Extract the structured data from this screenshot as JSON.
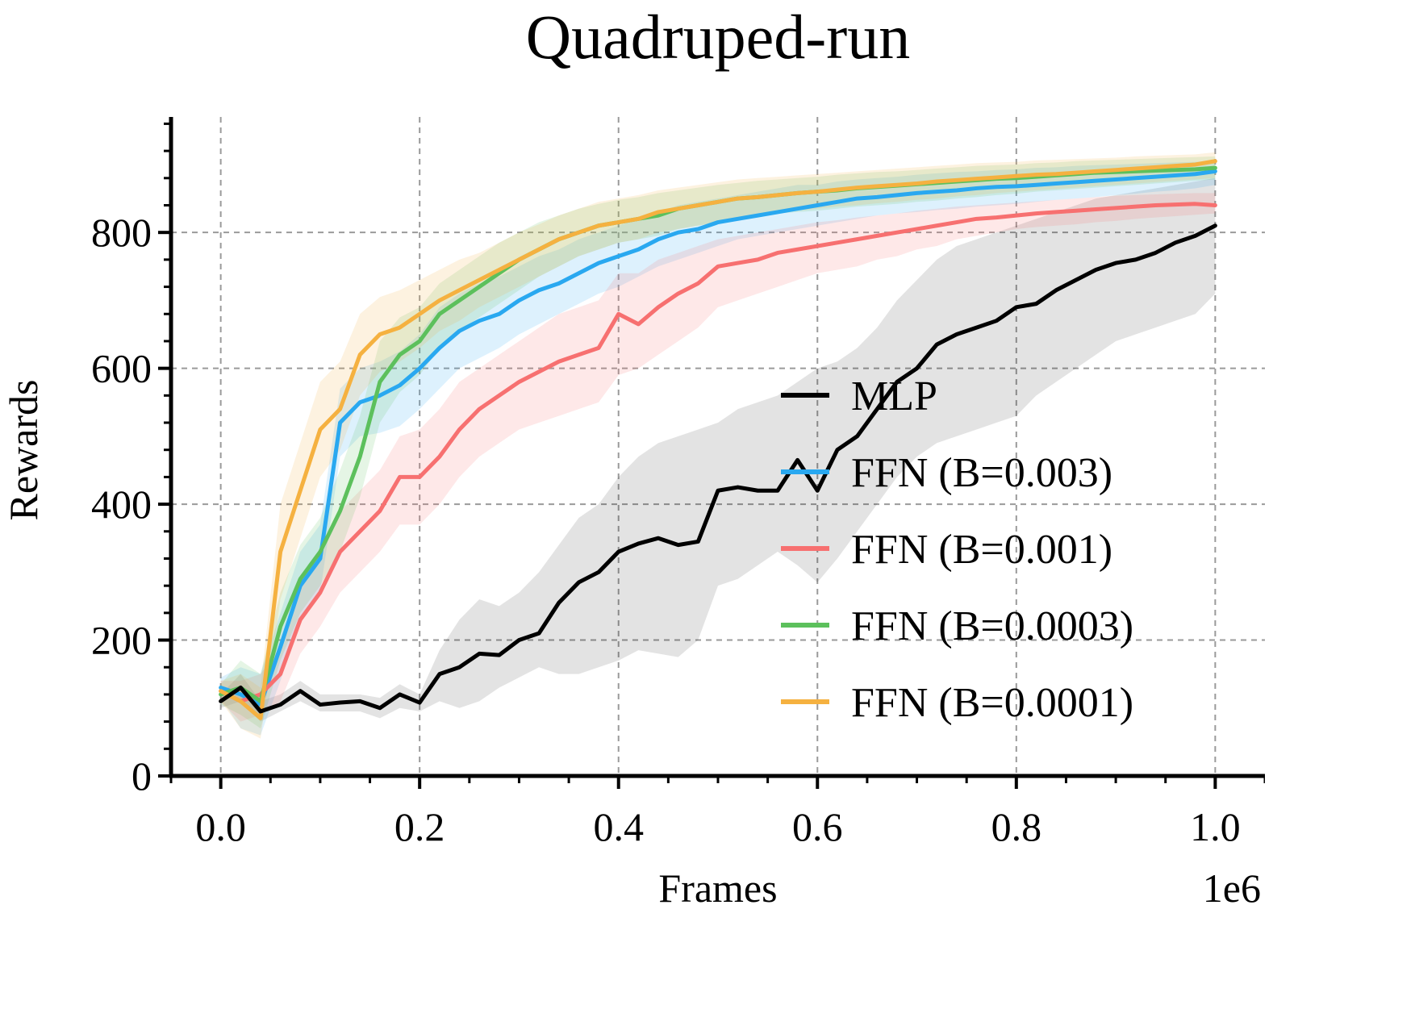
{
  "chart_data": {
    "type": "line",
    "title": "Quadruped-run",
    "xlabel": "Frames",
    "ylabel": "Rewards",
    "x_scale_label": "1e6",
    "xlim": [
      -0.05,
      1.05
    ],
    "ylim": [
      0,
      970
    ],
    "xticks": [
      0.0,
      0.2,
      0.4,
      0.6,
      0.8,
      1.0
    ],
    "xtick_labels": [
      "0.0",
      "0.2",
      "0.4",
      "0.6",
      "0.8",
      "1.0"
    ],
    "yticks": [
      0,
      200,
      400,
      600,
      800
    ],
    "ytick_labels": [
      "0",
      "200",
      "400",
      "600",
      "800"
    ],
    "grid": true,
    "legend_position": "center-right",
    "series": [
      {
        "name": "MLP",
        "color": "#000000",
        "x": [
          0.0,
          0.02,
          0.04,
          0.06,
          0.08,
          0.1,
          0.12,
          0.14,
          0.16,
          0.18,
          0.2,
          0.22,
          0.24,
          0.26,
          0.28,
          0.3,
          0.32,
          0.34,
          0.36,
          0.38,
          0.4,
          0.42,
          0.44,
          0.46,
          0.48,
          0.5,
          0.52,
          0.54,
          0.56,
          0.58,
          0.6,
          0.62,
          0.64,
          0.66,
          0.68,
          0.7,
          0.72,
          0.74,
          0.76,
          0.78,
          0.8,
          0.82,
          0.84,
          0.86,
          0.88,
          0.9,
          0.92,
          0.94,
          0.96,
          0.98,
          1.0
        ],
        "values": [
          110,
          130,
          95,
          105,
          125,
          105,
          108,
          110,
          100,
          120,
          108,
          150,
          160,
          180,
          178,
          200,
          210,
          255,
          285,
          300,
          330,
          342,
          350,
          340,
          345,
          420,
          425,
          420,
          420,
          465,
          420,
          480,
          500,
          540,
          580,
          600,
          635,
          650,
          660,
          670,
          690,
          695,
          715,
          730,
          745,
          755,
          760,
          770,
          785,
          795,
          810
        ],
        "band_low": [
          100,
          110,
          80,
          95,
          110,
          95,
          95,
          95,
          85,
          100,
          95,
          110,
          100,
          110,
          130,
          145,
          160,
          150,
          150,
          160,
          170,
          185,
          180,
          175,
          200,
          280,
          290,
          310,
          330,
          310,
          285,
          320,
          360,
          400,
          440,
          470,
          490,
          500,
          510,
          520,
          530,
          560,
          580,
          600,
          620,
          640,
          650,
          660,
          670,
          680,
          710
        ],
        "band_high": [
          120,
          150,
          110,
          120,
          140,
          120,
          120,
          120,
          115,
          135,
          120,
          185,
          230,
          260,
          250,
          270,
          300,
          340,
          380,
          400,
          440,
          470,
          490,
          500,
          510,
          520,
          540,
          550,
          560,
          580,
          600,
          610,
          630,
          660,
          700,
          730,
          760,
          780,
          790,
          800,
          810,
          820,
          830,
          840,
          850,
          855,
          860,
          865,
          870,
          875,
          880
        ]
      },
      {
        "name": "FFN (B=0.003)",
        "color": "#29a8f0",
        "x": [
          0.0,
          0.02,
          0.04,
          0.06,
          0.08,
          0.1,
          0.12,
          0.14,
          0.16,
          0.18,
          0.2,
          0.22,
          0.24,
          0.26,
          0.28,
          0.3,
          0.32,
          0.34,
          0.36,
          0.38,
          0.4,
          0.42,
          0.44,
          0.46,
          0.48,
          0.5,
          0.52,
          0.54,
          0.56,
          0.58,
          0.6,
          0.62,
          0.64,
          0.66,
          0.68,
          0.7,
          0.72,
          0.74,
          0.76,
          0.78,
          0.8,
          0.82,
          0.84,
          0.86,
          0.88,
          0.9,
          0.92,
          0.94,
          0.96,
          0.98,
          1.0
        ],
        "values": [
          130,
          120,
          105,
          190,
          280,
          320,
          520,
          550,
          560,
          575,
          600,
          630,
          655,
          670,
          680,
          700,
          715,
          725,
          740,
          755,
          765,
          775,
          790,
          800,
          805,
          815,
          820,
          825,
          830,
          835,
          840,
          845,
          850,
          852,
          855,
          858,
          860,
          862,
          865,
          867,
          868,
          870,
          872,
          874,
          876,
          878,
          880,
          882,
          884,
          886,
          890
        ],
        "band_low": [
          115,
          70,
          60,
          140,
          230,
          270,
          470,
          500,
          505,
          515,
          540,
          570,
          600,
          615,
          630,
          650,
          665,
          680,
          695,
          710,
          720,
          735,
          750,
          760,
          770,
          780,
          790,
          795,
          800,
          805,
          810,
          815,
          820,
          825,
          828,
          830,
          833,
          835,
          838,
          840,
          842,
          845,
          848,
          850,
          852,
          855,
          857,
          860,
          862,
          865,
          870
        ],
        "band_high": [
          145,
          160,
          150,
          240,
          330,
          370,
          570,
          600,
          610,
          625,
          650,
          690,
          710,
          725,
          735,
          750,
          765,
          775,
          790,
          800,
          810,
          820,
          830,
          840,
          845,
          850,
          855,
          860,
          865,
          870,
          870,
          875,
          878,
          880,
          882,
          885,
          887,
          889,
          890,
          892,
          893,
          895,
          896,
          898,
          899,
          900,
          901,
          902,
          903,
          904,
          905
        ]
      },
      {
        "name": "FFN (B=0.001)",
        "color": "#f77070",
        "x": [
          0.0,
          0.02,
          0.04,
          0.06,
          0.08,
          0.1,
          0.12,
          0.14,
          0.16,
          0.18,
          0.2,
          0.22,
          0.24,
          0.26,
          0.28,
          0.3,
          0.32,
          0.34,
          0.36,
          0.38,
          0.4,
          0.42,
          0.44,
          0.46,
          0.48,
          0.5,
          0.52,
          0.54,
          0.56,
          0.58,
          0.6,
          0.62,
          0.64,
          0.66,
          0.68,
          0.7,
          0.72,
          0.74,
          0.76,
          0.78,
          0.8,
          0.82,
          0.84,
          0.86,
          0.88,
          0.9,
          0.92,
          0.94,
          0.96,
          0.98,
          1.0
        ],
        "values": [
          125,
          110,
          120,
          150,
          230,
          270,
          330,
          360,
          390,
          440,
          440,
          470,
          510,
          540,
          560,
          580,
          595,
          610,
          620,
          630,
          680,
          665,
          690,
          710,
          725,
          750,
          755,
          760,
          770,
          775,
          780,
          785,
          790,
          795,
          800,
          805,
          810,
          815,
          820,
          822,
          825,
          828,
          830,
          832,
          834,
          836,
          838,
          840,
          841,
          842,
          840
        ],
        "band_low": [
          110,
          80,
          90,
          110,
          180,
          220,
          270,
          300,
          330,
          370,
          370,
          400,
          440,
          470,
          490,
          510,
          520,
          530,
          540,
          550,
          590,
          600,
          620,
          640,
          660,
          690,
          700,
          710,
          720,
          730,
          740,
          745,
          750,
          760,
          765,
          775,
          780,
          790,
          795,
          800,
          805,
          808,
          810,
          812,
          815,
          817,
          820,
          822,
          824,
          826,
          828
        ],
        "band_high": [
          140,
          140,
          150,
          190,
          280,
          320,
          390,
          420,
          450,
          500,
          510,
          540,
          580,
          600,
          620,
          640,
          660,
          680,
          690,
          700,
          740,
          740,
          760,
          770,
          780,
          790,
          795,
          800,
          805,
          810,
          815,
          818,
          822,
          825,
          828,
          832,
          835,
          838,
          840,
          842,
          844,
          846,
          848,
          850,
          852,
          854,
          855,
          856,
          857,
          858,
          858
        ]
      },
      {
        "name": "FFN (B=0.0003)",
        "color": "#5cc05c",
        "x": [
          0.0,
          0.02,
          0.04,
          0.06,
          0.08,
          0.1,
          0.12,
          0.14,
          0.16,
          0.18,
          0.2,
          0.22,
          0.24,
          0.26,
          0.28,
          0.3,
          0.32,
          0.34,
          0.36,
          0.38,
          0.4,
          0.42,
          0.44,
          0.46,
          0.48,
          0.5,
          0.52,
          0.54,
          0.56,
          0.58,
          0.6,
          0.62,
          0.64,
          0.66,
          0.68,
          0.7,
          0.72,
          0.74,
          0.76,
          0.78,
          0.8,
          0.82,
          0.84,
          0.86,
          0.88,
          0.9,
          0.92,
          0.94,
          0.96,
          0.98,
          1.0
        ],
        "values": [
          120,
          130,
          110,
          220,
          290,
          330,
          390,
          470,
          580,
          620,
          640,
          680,
          700,
          720,
          740,
          760,
          775,
          790,
          800,
          810,
          815,
          820,
          825,
          835,
          840,
          845,
          850,
          852,
          855,
          858,
          860,
          862,
          865,
          867,
          869,
          871,
          873,
          875,
          877,
          879,
          880,
          882,
          884,
          886,
          888,
          889,
          890,
          891,
          892,
          893,
          895
        ],
        "band_low": [
          105,
          90,
          70,
          170,
          240,
          280,
          330,
          410,
          520,
          565,
          590,
          630,
          655,
          675,
          695,
          715,
          735,
          750,
          765,
          775,
          785,
          790,
          795,
          805,
          810,
          815,
          820,
          825,
          828,
          830,
          832,
          835,
          838,
          840,
          842,
          845,
          847,
          850,
          852,
          855,
          857,
          860,
          862,
          864,
          866,
          868,
          870,
          872,
          874,
          876,
          878
        ],
        "band_high": [
          135,
          170,
          150,
          270,
          340,
          380,
          450,
          530,
          640,
          675,
          690,
          725,
          745,
          765,
          785,
          800,
          815,
          825,
          835,
          842,
          848,
          852,
          858,
          862,
          866,
          870,
          873,
          876,
          878,
          880,
          882,
          885,
          887,
          889,
          890,
          892,
          894,
          896,
          898,
          899,
          900,
          902,
          903,
          905,
          906,
          907,
          908,
          909,
          910,
          911,
          912
        ]
      },
      {
        "name": "FFN (B=0.0001)",
        "color": "#f5b140",
        "x": [
          0.0,
          0.02,
          0.04,
          0.06,
          0.08,
          0.1,
          0.12,
          0.14,
          0.16,
          0.18,
          0.2,
          0.22,
          0.24,
          0.26,
          0.28,
          0.3,
          0.32,
          0.34,
          0.36,
          0.38,
          0.4,
          0.42,
          0.44,
          0.46,
          0.48,
          0.5,
          0.52,
          0.54,
          0.56,
          0.58,
          0.6,
          0.62,
          0.64,
          0.66,
          0.68,
          0.7,
          0.72,
          0.74,
          0.76,
          0.78,
          0.8,
          0.82,
          0.84,
          0.86,
          0.88,
          0.9,
          0.92,
          0.94,
          0.96,
          0.98,
          1.0
        ],
        "values": [
          125,
          110,
          85,
          330,
          420,
          510,
          540,
          620,
          650,
          660,
          680,
          700,
          715,
          730,
          745,
          760,
          775,
          790,
          800,
          810,
          815,
          820,
          830,
          835,
          840,
          845,
          850,
          852,
          855,
          858,
          860,
          863,
          866,
          868,
          870,
          872,
          875,
          877,
          879,
          881,
          883,
          885,
          886,
          888,
          890,
          892,
          894,
          896,
          898,
          900,
          905
        ],
        "band_low": [
          110,
          70,
          55,
          260,
          350,
          440,
          480,
          560,
          595,
          610,
          630,
          655,
          670,
          690,
          705,
          720,
          735,
          750,
          765,
          775,
          785,
          790,
          800,
          805,
          810,
          815,
          820,
          825,
          830,
          832,
          835,
          838,
          840,
          843,
          845,
          848,
          850,
          853,
          855,
          858,
          860,
          862,
          864,
          866,
          868,
          870,
          872,
          874,
          876,
          878,
          880
        ],
        "band_high": [
          140,
          150,
          130,
          400,
          490,
          580,
          610,
          680,
          705,
          715,
          730,
          745,
          760,
          770,
          785,
          800,
          812,
          825,
          835,
          845,
          850,
          855,
          862,
          866,
          870,
          874,
          878,
          880,
          882,
          884,
          886,
          888,
          890,
          892,
          894,
          896,
          898,
          900,
          902,
          903,
          904,
          906,
          907,
          908,
          909,
          910,
          912,
          913,
          914,
          915,
          918
        ]
      }
    ]
  }
}
